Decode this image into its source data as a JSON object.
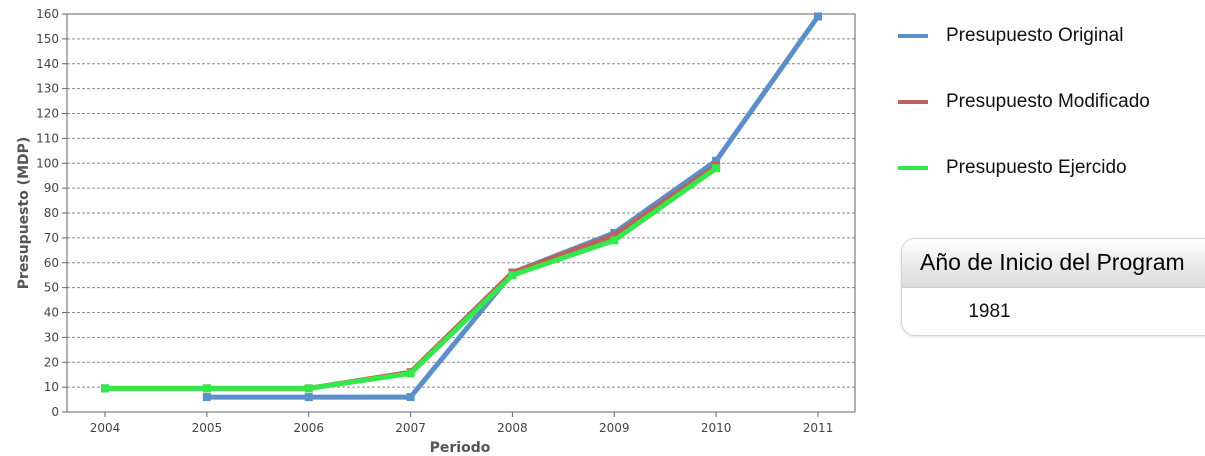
{
  "chart_data": {
    "type": "line",
    "title": "",
    "xlabel": "Periodo",
    "ylabel": "Presupuesto (MDP)",
    "categories": [
      "2004",
      "2005",
      "2006",
      "2007",
      "2008",
      "2009",
      "2010",
      "2011"
    ],
    "ylim": [
      0,
      160
    ],
    "yticks": [
      0,
      10,
      20,
      30,
      40,
      50,
      60,
      70,
      80,
      90,
      100,
      110,
      120,
      130,
      140,
      150,
      160
    ],
    "grid": true,
    "legend_position": "right",
    "series": [
      {
        "name": "Presupuesto Original",
        "color": "#5b8fc9",
        "values": [
          null,
          6,
          6,
          6,
          56,
          72,
          101,
          159
        ]
      },
      {
        "name": "Presupuesto Modificado",
        "color": "#c0605a",
        "values": [
          9.5,
          9.5,
          9.5,
          16,
          56,
          71,
          99,
          null
        ]
      },
      {
        "name": "Presupuesto Ejercido",
        "color": "#33e84a",
        "values": [
          9.5,
          9.5,
          9.5,
          15.5,
          55,
          69,
          98,
          null
        ]
      }
    ]
  },
  "info_panel": {
    "title": "Año de Inicio del Program",
    "value": "1981"
  }
}
